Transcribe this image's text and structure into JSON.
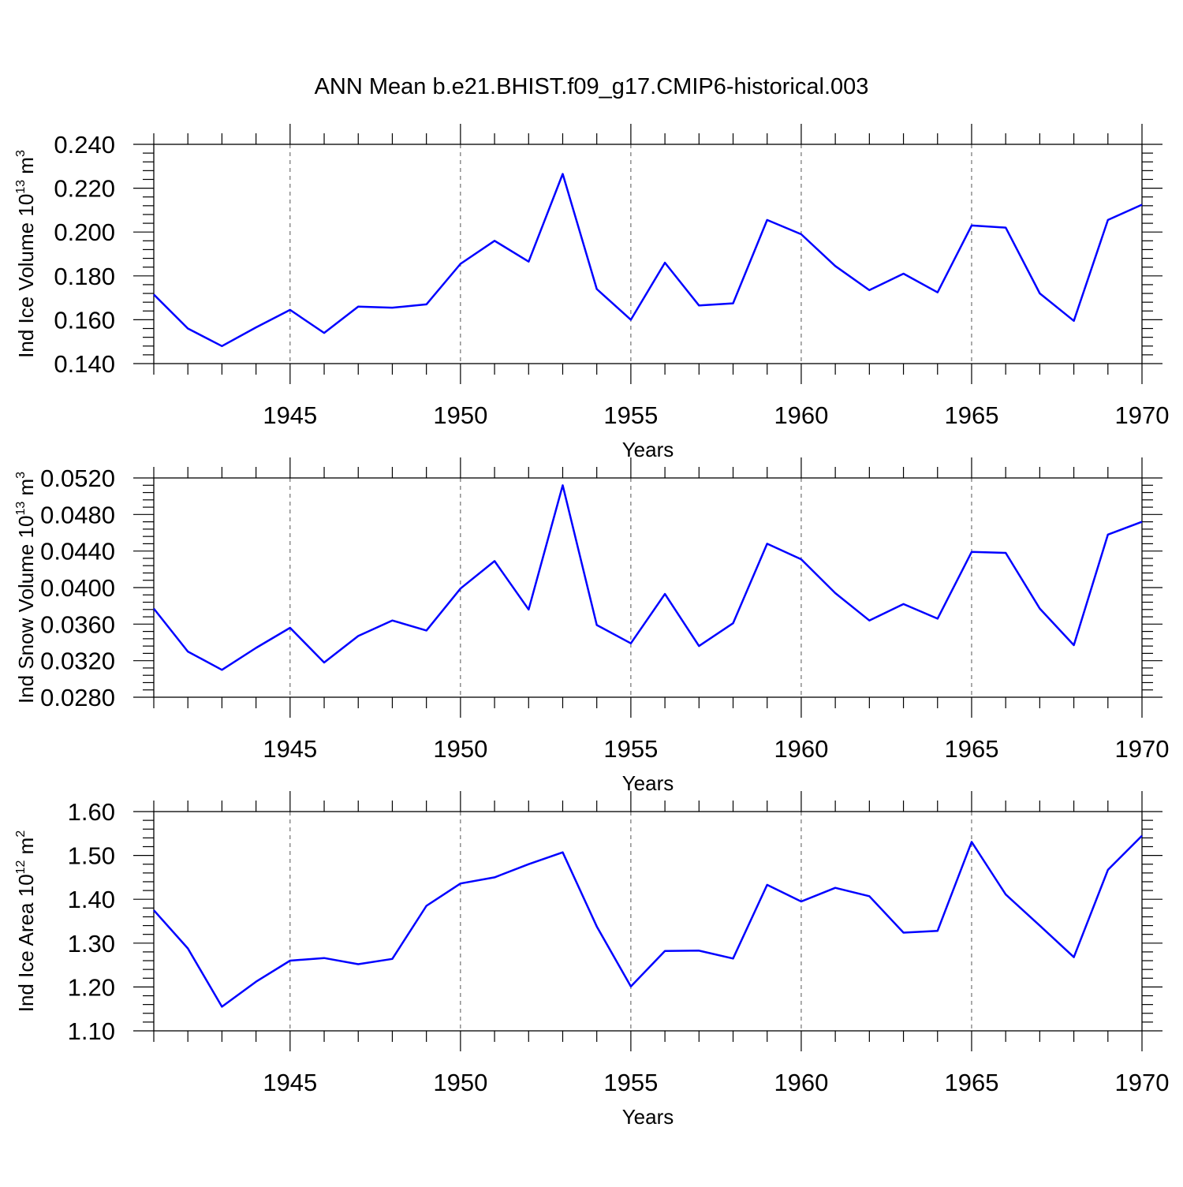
{
  "title": "ANN Mean b.e21.BHIST.f09_g17.CMIP6-historical.003",
  "colors": {
    "series": "#0000ff",
    "axis": "#000000",
    "grid": "#555555"
  },
  "chart_data": [
    {
      "type": "line",
      "ylabel": {
        "text": "Ind Ice Volume 10",
        "sup": "13",
        "unit": " m",
        "unit_sup": "3"
      },
      "xlabel": "Years",
      "xlim": [
        1941,
        1970
      ],
      "ylim": [
        0.14,
        0.24
      ],
      "yticks": [
        "0.140",
        "0.160",
        "0.180",
        "0.200",
        "0.220",
        "0.240"
      ],
      "xticks": [
        "1945",
        "1950",
        "1955",
        "1960",
        "1965",
        "1970"
      ],
      "grid": "vertical dashed at major x ticks",
      "x": [
        1941,
        1942,
        1943,
        1944,
        1945,
        1946,
        1947,
        1948,
        1949,
        1950,
        1951,
        1952,
        1953,
        1954,
        1955,
        1956,
        1957,
        1958,
        1959,
        1960,
        1961,
        1962,
        1963,
        1964,
        1965,
        1966,
        1967,
        1968,
        1969,
        1970
      ],
      "series": [
        {
          "values": [
            0.1715,
            0.156,
            0.148,
            0.1565,
            0.1645,
            0.154,
            0.166,
            0.1655,
            0.167,
            0.1855,
            0.196,
            0.1865,
            0.2265,
            0.174,
            0.16,
            0.186,
            0.1665,
            0.1675,
            0.2055,
            0.199,
            0.1845,
            0.1735,
            0.181,
            0.1725,
            0.203,
            0.202,
            0.172,
            0.1595,
            0.2055,
            0.2125
          ]
        }
      ]
    },
    {
      "type": "line",
      "ylabel": {
        "text": "Ind Snow Volume 10",
        "sup": "13",
        "unit": " m",
        "unit_sup": "3"
      },
      "xlabel": "Years",
      "xlim": [
        1941,
        1970
      ],
      "ylim": [
        0.028,
        0.052
      ],
      "yticks": [
        "0.0280",
        "0.0320",
        "0.0360",
        "0.0400",
        "0.0440",
        "0.0480",
        "0.0520"
      ],
      "xticks": [
        "1945",
        "1950",
        "1955",
        "1960",
        "1965",
        "1970"
      ],
      "grid": "vertical dashed at major x ticks",
      "x": [
        1941,
        1942,
        1943,
        1944,
        1945,
        1946,
        1947,
        1948,
        1949,
        1950,
        1951,
        1952,
        1953,
        1954,
        1955,
        1956,
        1957,
        1958,
        1959,
        1960,
        1961,
        1962,
        1963,
        1964,
        1965,
        1966,
        1967,
        1968,
        1969,
        1970
      ],
      "series": [
        {
          "values": [
            0.0377,
            0.033,
            0.031,
            0.0334,
            0.0356,
            0.0318,
            0.0347,
            0.0364,
            0.0353,
            0.0399,
            0.0429,
            0.0376,
            0.0512,
            0.0359,
            0.0339,
            0.0393,
            0.0336,
            0.0361,
            0.0448,
            0.0431,
            0.0394,
            0.0364,
            0.0382,
            0.0366,
            0.0439,
            0.0438,
            0.0377,
            0.0337,
            0.0458,
            0.0472
          ]
        }
      ]
    },
    {
      "type": "line",
      "ylabel": {
        "text": "Ind Ice Area 10",
        "sup": "12",
        "unit": " m",
        "unit_sup": "2"
      },
      "xlabel": "Years",
      "xlim": [
        1941,
        1970
      ],
      "ylim": [
        1.1,
        1.6
      ],
      "yticks": [
        "1.10",
        "1.20",
        "1.30",
        "1.40",
        "1.50",
        "1.60"
      ],
      "xticks": [
        "1945",
        "1950",
        "1955",
        "1960",
        "1965",
        "1970"
      ],
      "grid": "vertical dashed at major x ticks",
      "x": [
        1941,
        1942,
        1943,
        1944,
        1945,
        1946,
        1947,
        1948,
        1949,
        1950,
        1951,
        1952,
        1953,
        1954,
        1955,
        1956,
        1957,
        1958,
        1959,
        1960,
        1961,
        1962,
        1963,
        1964,
        1965,
        1966,
        1967,
        1968,
        1969,
        1970
      ],
      "series": [
        {
          "values": [
            1.375,
            1.288,
            1.155,
            1.212,
            1.26,
            1.266,
            1.252,
            1.264,
            1.385,
            1.436,
            1.45,
            1.48,
            1.507,
            1.338,
            1.201,
            1.282,
            1.283,
            1.265,
            1.433,
            1.395,
            1.426,
            1.407,
            1.324,
            1.328,
            1.531,
            1.411,
            1.34,
            1.268,
            1.467,
            1.545
          ]
        }
      ]
    }
  ]
}
